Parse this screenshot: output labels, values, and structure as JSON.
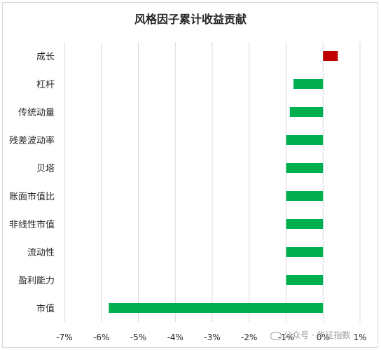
{
  "chart_data": {
    "type": "bar",
    "orientation": "horizontal",
    "title": "风格因子累计收益贡献",
    "categories": [
      "成长",
      "杠杆",
      "传统动量",
      "残差波动率",
      "贝塔",
      "账面市值比",
      "非线性市值",
      "流动性",
      "盈利能力",
      "市值"
    ],
    "values": [
      0.4,
      -0.8,
      -0.9,
      -1.0,
      -1.0,
      -1.0,
      -1.0,
      -1.0,
      -1.0,
      -5.8
    ],
    "xlim": [
      -7,
      1
    ],
    "x_ticks": [
      "-7%",
      "-6%",
      "-5%",
      "-4%",
      "-3%",
      "-2%",
      "-1%",
      "0%",
      "1%"
    ],
    "grid": "vertical",
    "colors": {
      "positive": "#c00000",
      "negative": "#00b050",
      "grid": "#d9d9d9"
    }
  },
  "watermark": "公众号 · 华证指数"
}
